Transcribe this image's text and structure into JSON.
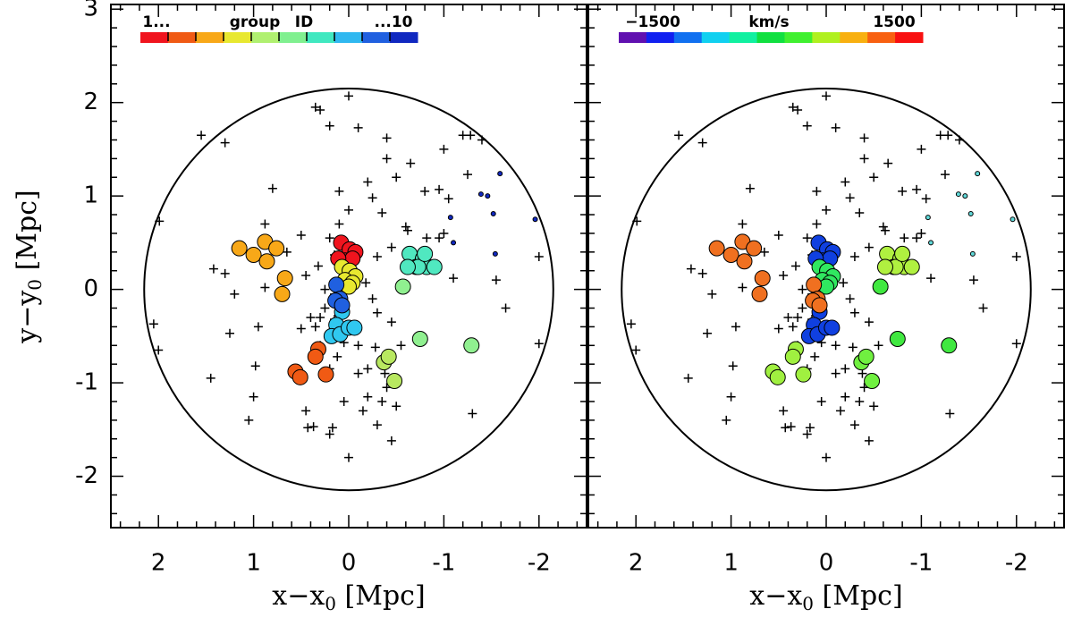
{
  "chart_data": {
    "type": "scatter",
    "xlim": [
      2.5,
      -2.5
    ],
    "ylim": [
      -2.55,
      3.05
    ],
    "xticks": [
      2,
      1,
      0,
      -1,
      -2
    ],
    "yticks": [
      -2,
      -1,
      0,
      1,
      2,
      3
    ],
    "xlabel": {
      "main": "x−x",
      "sub": "0",
      "unit": " [Mpc]"
    },
    "ylabel": {
      "main": "y−y",
      "sub": "0",
      "unit": " [Mpc]"
    },
    "aperture_radius": 2.15,
    "panels": [
      {
        "color_key": "color",
        "colorbar": {
          "colors": [
            "#f0141e",
            "#f05a14",
            "#f8a818",
            "#e8e830",
            "#b0f070",
            "#80f090",
            "#40e8c0",
            "#30b8f0",
            "#2060e0",
            "#1028c0"
          ],
          "labels": [
            "1...",
            "group",
            "ID",
            "...10"
          ]
        }
      },
      {
        "color_key": "velocity_color",
        "colorbar": {
          "colors": [
            "#6010b0",
            "#1020f0",
            "#1070f0",
            "#10d0f0",
            "#10f0a0",
            "#10e040",
            "#40f030",
            "#b0f020",
            "#f8b010",
            "#f86010",
            "#f81010"
          ],
          "labels": [
            "−1500",
            "km/s",
            "1500"
          ]
        }
      }
    ],
    "groups": [
      {
        "marker": "circle",
        "color": "#f0141e",
        "velocity_color": "#1040e0",
        "x": [
          0.08,
          -0.01,
          -0.07,
          0.04,
          -0.04,
          0.11
        ],
        "y": [
          0.5,
          0.43,
          0.4,
          0.31,
          0.33,
          0.33
        ]
      },
      {
        "marker": "circle",
        "color": "#f05a14",
        "velocity_color": "#a0f040",
        "x": [
          0.56,
          0.51,
          0.32,
          0.35,
          0.24
        ],
        "y": [
          -0.88,
          -0.94,
          -0.64,
          -0.72,
          -0.91
        ]
      },
      {
        "marker": "circle",
        "color": "#f8a818",
        "velocity_color": "#f07020",
        "x": [
          1.15,
          1.0,
          0.88,
          0.76,
          0.86,
          0.67,
          0.7
        ],
        "y": [
          0.44,
          0.37,
          0.51,
          0.44,
          0.3,
          0.12,
          -0.05
        ]
      },
      {
        "marker": "circle",
        "color": "#e8e830",
        "velocity_color": "#30e860",
        "x": [
          0.07,
          -0.01,
          -0.07,
          0.04,
          -0.04,
          0.0
        ],
        "y": [
          0.24,
          0.2,
          0.14,
          0.1,
          0.07,
          0.03
        ]
      },
      {
        "marker": "circle",
        "color": "#b8e860",
        "velocity_color": "#70f040",
        "x": [
          -0.37,
          -0.42,
          -0.48
        ],
        "y": [
          -0.78,
          -0.72,
          -0.98
        ]
      },
      {
        "marker": "circle",
        "color": "#90f090",
        "velocity_color": "#40e840",
        "x": [
          -0.57,
          -0.75,
          -1.29
        ],
        "y": [
          0.03,
          -0.53,
          -0.6
        ]
      },
      {
        "marker": "circle",
        "color": "#50e8c0",
        "velocity_color": "#b0f040",
        "x": [
          -0.64,
          -0.71,
          -0.78,
          -0.82,
          -0.9,
          -0.73,
          -0.62,
          -0.8
        ],
        "y": [
          0.38,
          0.24,
          0.33,
          0.24,
          0.24,
          0.24,
          0.24,
          0.38
        ]
      },
      {
        "marker": "circle",
        "color": "#30c8f0",
        "velocity_color": "#1040e0",
        "x": [
          0.07,
          0.13,
          0.18,
          0.09,
          0.0,
          -0.06
        ],
        "y": [
          -0.24,
          -0.38,
          -0.5,
          -0.48,
          -0.41,
          -0.41
        ]
      },
      {
        "marker": "circle",
        "color": "#2060e0",
        "velocity_color": "#f07020",
        "x": [
          0.13,
          0.09,
          0.14,
          0.07
        ],
        "y": [
          0.05,
          -0.1,
          -0.12,
          -0.17
        ]
      },
      {
        "marker": "dot",
        "color": "#1028c0",
        "velocity_color": "#60d8d8",
        "x": [
          -1.07,
          -1.1,
          -1.39,
          -1.46,
          -1.52,
          -1.54,
          -1.59,
          -1.96
        ],
        "y": [
          0.77,
          0.5,
          1.02,
          1.0,
          0.81,
          0.38,
          1.24,
          0.75
        ]
      }
    ],
    "field": {
      "x": [
        1.99,
        2.05,
        2.0,
        1.55,
        1.3,
        0.8,
        0.88,
        1.3,
        1.42,
        1.2,
        0.88,
        1.25,
        0.95,
        0.98,
        1.0,
        1.45,
        1.05,
        0.45,
        0.43,
        0.37,
        0.17,
        0.2,
        0.0,
        0.05,
        -0.15,
        -0.3,
        -0.45,
        -0.35,
        -0.5,
        -0.2,
        -0.1,
        0.2,
        0.05,
        0.5,
        0.35,
        0.3,
        0.12,
        -0.28,
        -0.38,
        -0.55,
        -1.3,
        -1.65,
        -2.0,
        -2.0,
        -1.55,
        -1.1,
        -1.0,
        -0.82,
        -0.62,
        -0.6,
        -0.45,
        -0.3,
        -0.5,
        -0.4,
        -0.65,
        -0.8,
        -0.95,
        -0.95,
        -1.05,
        -1.0,
        -1.2,
        -1.28,
        -1.25,
        -1.4,
        0.7,
        0.45,
        0.32,
        0.25,
        0.15,
        0.2,
        0.1,
        0.0,
        0.1,
        0.0,
        0.3,
        0.35,
        0.2,
        -0.1,
        -0.4,
        -0.2,
        -0.25,
        -0.35,
        0.15,
        0.5,
        0.65,
        -0.18,
        -0.25,
        -0.3,
        -0.45,
        0.3,
        0.4,
        0.25,
        0.15,
        -0.1,
        -0.2,
        -0.4
      ],
      "y": [
        0.73,
        -0.37,
        -0.65,
        1.65,
        1.57,
        1.08,
        0.7,
        0.17,
        0.22,
        -0.05,
        0.02,
        -0.47,
        -0.4,
        -0.82,
        -1.15,
        -0.95,
        -1.4,
        -1.3,
        -1.48,
        -1.47,
        -1.48,
        -1.55,
        -1.8,
        -1.2,
        -1.3,
        -1.45,
        -1.62,
        -1.2,
        -1.25,
        -0.85,
        -0.9,
        -0.85,
        -0.57,
        -0.42,
        -0.4,
        -0.6,
        -0.72,
        -0.62,
        -0.9,
        -0.6,
        -1.33,
        -0.2,
        -0.58,
        0.35,
        0.1,
        0.12,
        0.6,
        0.55,
        0.63,
        0.67,
        0.45,
        0.35,
        1.2,
        1.62,
        1.35,
        1.05,
        0.55,
        1.07,
        0.97,
        1.5,
        1.65,
        1.65,
        1.23,
        1.6,
        0.1,
        0.15,
        0.25,
        0.0,
        -0.05,
        0.55,
        0.7,
        0.85,
        1.05,
        2.07,
        1.92,
        1.95,
        1.75,
        1.73,
        1.4,
        1.15,
        0.98,
        0.82,
        0.37,
        0.58,
        0.4,
        0.07,
        -0.1,
        -0.25,
        -0.35,
        -0.3,
        -0.3,
        -0.2,
        -0.32,
        -0.6,
        -1.15,
        -1.05
      ]
    }
  }
}
